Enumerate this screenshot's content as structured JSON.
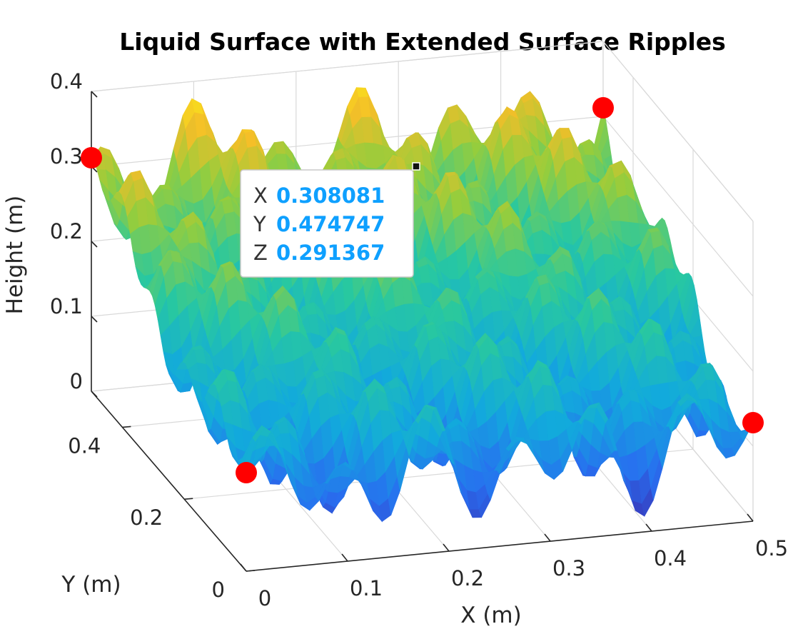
{
  "chart_data": {
    "type": "surface",
    "title": "Liquid Surface with Extended Surface Ripples",
    "xlabel": "X (m)",
    "ylabel": "Y (m)",
    "zlabel": "Height (m)",
    "xlim": [
      0,
      0.5
    ],
    "ylim": [
      0,
      0.5
    ],
    "zlim": [
      0,
      0.4
    ],
    "x_ticks": [
      "0",
      "0.1",
      "0.2",
      "0.3",
      "0.4",
      "0.5"
    ],
    "y_ticks": [
      "0",
      "0.2",
      "0.4"
    ],
    "z_ticks": [
      "0",
      "0.1",
      "0.2",
      "0.3",
      "0.4"
    ],
    "grid": true,
    "colormap": "parula",
    "surface": {
      "base_height": 0.2,
      "amplitude": 0.1,
      "ripple_cycles_x": 6,
      "ripple_cycles_y": 5
    },
    "markers": [
      {
        "x": 0,
        "y": 0,
        "z": 0.1,
        "color": "#ff0000"
      },
      {
        "x": 0.5,
        "y": 0,
        "z": 0.1,
        "color": "#ff0000"
      },
      {
        "x": 0,
        "y": 0.5,
        "z": 0.3,
        "color": "#ff0000"
      },
      {
        "x": 0.5,
        "y": 0.5,
        "z": 0.3,
        "color": "#ff0000"
      }
    ],
    "datatip": {
      "x_key": "X",
      "y_key": "Y",
      "z_key": "Z",
      "x": "0.308081",
      "y": "0.474747",
      "z": "0.291367"
    }
  }
}
